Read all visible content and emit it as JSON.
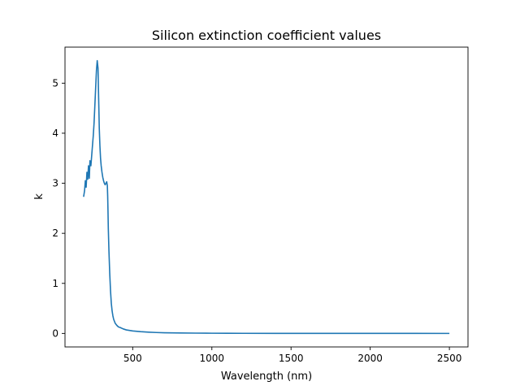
{
  "chart_data": {
    "type": "line",
    "title": "Silicon extinction coefficient values",
    "xlabel": "Wavelength (nm)",
    "ylabel": "k",
    "xlim": [
      72.5,
      2617.5
    ],
    "ylim": [
      -0.27,
      5.72
    ],
    "xticks": [
      500,
      1000,
      1500,
      2000,
      2500
    ],
    "xtick_labels": [
      "500",
      "1000",
      "1500",
      "2000",
      "2500"
    ],
    "yticks": [
      0,
      1,
      2,
      3,
      4,
      5
    ],
    "ytick_labels": [
      "0",
      "1",
      "2",
      "3",
      "4",
      "5"
    ],
    "grid": false,
    "series": [
      {
        "color": "#1f77b4",
        "x": [
          190,
          196,
          201,
          206,
          211,
          216,
          221,
          226,
          230,
          236,
          241,
          246,
          251,
          256,
          261,
          266,
          271,
          276,
          281,
          285,
          289,
          293,
          297,
          301,
          306,
          311,
          316,
          321,
          326,
          331,
          336,
          340,
          342,
          344,
          346,
          350,
          355,
          360,
          365,
          370,
          375,
          380,
          390,
          400,
          410,
          420,
          440,
          460,
          480,
          500,
          550,
          600,
          650,
          700,
          800,
          900,
          1000,
          1100,
          1200,
          1400,
          1600,
          1800,
          2000,
          2200,
          2500
        ],
        "y": [
          2.73,
          2.85,
          3.05,
          2.92,
          3.22,
          3.08,
          3.35,
          3.1,
          3.45,
          3.35,
          3.55,
          3.75,
          3.95,
          4.2,
          4.55,
          4.9,
          5.25,
          5.45,
          5.3,
          4.7,
          4.1,
          3.75,
          3.5,
          3.35,
          3.22,
          3.12,
          3.05,
          3.0,
          2.97,
          3.0,
          3.03,
          2.95,
          2.75,
          2.45,
          2.1,
          1.65,
          1.2,
          0.85,
          0.6,
          0.45,
          0.35,
          0.28,
          0.2,
          0.16,
          0.13,
          0.12,
          0.09,
          0.07,
          0.06,
          0.05,
          0.035,
          0.025,
          0.018,
          0.013,
          0.009,
          0.006,
          0.004,
          0.003,
          0.002,
          0.001,
          0.0005,
          0.0003,
          0.0002,
          0.0001,
          0.0
        ]
      }
    ]
  }
}
